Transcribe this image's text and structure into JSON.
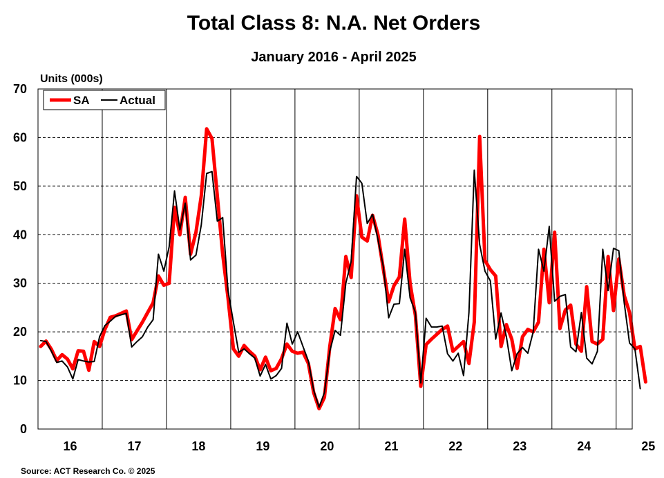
{
  "chart_data": {
    "type": "line",
    "title": "Total Class 8: N.A. Net Orders",
    "subtitle": "January 2016 - April 2025",
    "ylabel": "Units (000s)",
    "xlabel": "",
    "ylim": [
      0,
      70
    ],
    "yticks": [
      "0",
      "10",
      "20",
      "30",
      "40",
      "50",
      "60",
      "70"
    ],
    "xlim_months": [
      0,
      111
    ],
    "x_ticks": [
      "16",
      "17",
      "18",
      "19",
      "20",
      "21",
      "22",
      "23",
      "24",
      "25"
    ],
    "x_tick_month_offsets": [
      6,
      18,
      30,
      42,
      54,
      66,
      78,
      90,
      102,
      114
    ],
    "year_gridline_months": [
      12,
      24,
      36,
      48,
      60,
      72,
      84,
      96,
      108
    ],
    "grid": "horizontal dashed, vertical solid at year boundaries",
    "legend": "top-left",
    "source": "Source: ACT Research Co. © 2025",
    "series": [
      {
        "name": "SA",
        "color": "#ff0000",
        "values": [
          17.0,
          18.1,
          16.4,
          14.1,
          15.3,
          14.4,
          12.4,
          16.1,
          16.0,
          12.1,
          18.0,
          17.0,
          20.5,
          23.0,
          23.3,
          23.8,
          24.3,
          18.4,
          20.2,
          22.0,
          24.0,
          26.0,
          31.5,
          29.6,
          30.0,
          45.6,
          40.0,
          47.7,
          36.0,
          40.5,
          48.0,
          61.8,
          59.8,
          48.0,
          36.0,
          27.0,
          16.5,
          15.0,
          17.2,
          16.0,
          15.0,
          12.2,
          14.8,
          12.0,
          12.5,
          14.5,
          17.5,
          16.0,
          15.6,
          15.8,
          13.5,
          7.5,
          4.2,
          6.5,
          17.0,
          24.8,
          22.5,
          35.5,
          31.2,
          48.0,
          39.5,
          38.7,
          44.0,
          40.0,
          33.0,
          26.2,
          29.5,
          31.3,
          43.2,
          30.0,
          23.4,
          8.8,
          17.4,
          18.5,
          19.5,
          20.5,
          21.2,
          16.0,
          17.0,
          18.0,
          13.5,
          22.0,
          60.2,
          34.7,
          32.8,
          31.5,
          17.0,
          21.5,
          18.5,
          12.5,
          19.0,
          20.5,
          20.0,
          22.0,
          37.0,
          26.0,
          40.5,
          20.7,
          24.5,
          25.5,
          17.5,
          16.0,
          29.3,
          18.0,
          17.5,
          18.5,
          35.5,
          24.4,
          35.0,
          27.5,
          24.0,
          16.5,
          17.0,
          9.7
        ],
        "label": "SA"
      },
      {
        "name": "Actual",
        "color": "#000000",
        "values": [
          18.2,
          18.0,
          16.0,
          13.7,
          14.0,
          12.8,
          10.3,
          14.3,
          14.0,
          13.8,
          13.9,
          19.0,
          21.3,
          22.2,
          23.2,
          23.5,
          23.8,
          16.9,
          18.0,
          19.0,
          21.0,
          22.5,
          36.0,
          32.5,
          37.5,
          49.0,
          41.0,
          46.5,
          34.8,
          35.8,
          42.0,
          52.6,
          53.0,
          42.8,
          43.5,
          28.5,
          22.0,
          15.8,
          16.5,
          15.5,
          14.6,
          10.9,
          13.3,
          10.3,
          11.0,
          12.5,
          21.8,
          17.5,
          20.0,
          17.0,
          14.0,
          8.0,
          4.5,
          7.5,
          16.0,
          20.3,
          19.3,
          30.0,
          34.5,
          52.0,
          50.6,
          42.3,
          44.2,
          39.0,
          33.5,
          22.9,
          25.7,
          25.8,
          37.0,
          27.0,
          24.0,
          9.5,
          22.8,
          21.0,
          21.0,
          21.2,
          15.5,
          14.0,
          15.6,
          11.0,
          24.0,
          53.3,
          38.0,
          32.5,
          30.5,
          18.5,
          23.9,
          19.0,
          12.0,
          15.5,
          16.8,
          15.6,
          20.0,
          37.0,
          32.5,
          41.7,
          26.3,
          27.3,
          27.7,
          16.9,
          15.9,
          24.0,
          14.6,
          13.4,
          16.0,
          37.0,
          28.5,
          37.2,
          36.7,
          26.0,
          17.7,
          16.5,
          8.3
        ],
        "label": "Actual"
      }
    ]
  }
}
